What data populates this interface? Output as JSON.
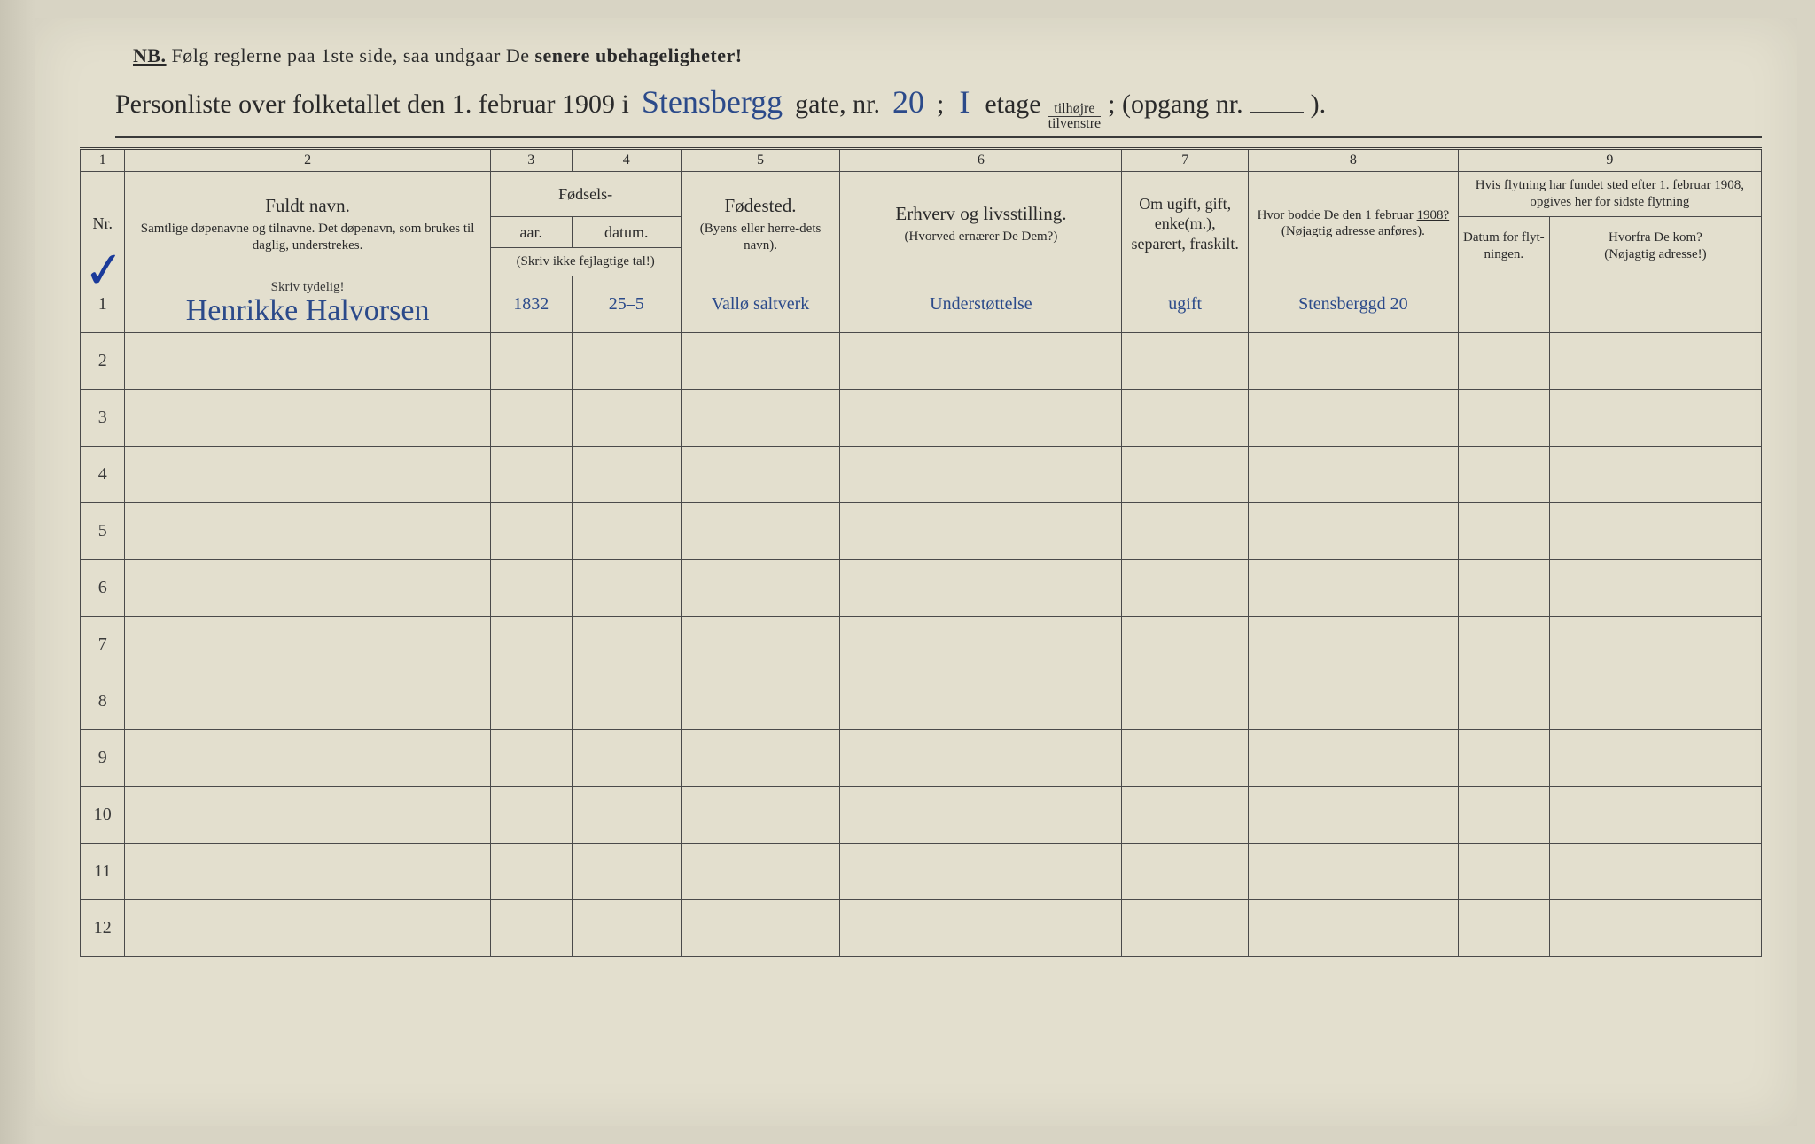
{
  "header": {
    "nb_prefix": "NB.",
    "nb_text_1": "Følg reglerne paa 1ste side, saa undgaar De",
    "nb_text_2": "senere ubehageligheter!",
    "title_1": "Personliste over folketallet den 1. februar 1909 i",
    "street_hand": "Stensbergg",
    "title_2": "gate, nr.",
    "nr_hand": "20",
    "title_3": ";",
    "etage_hand": "I",
    "title_4": "etage",
    "side_top": "tilhøjre",
    "side_bot": "tilvenstre",
    "title_5": "; (opgang nr.",
    "opgang_hand": "",
    "title_6": ")."
  },
  "columns": {
    "nums": [
      "1",
      "2",
      "3",
      "4",
      "5",
      "6",
      "7",
      "8",
      "9"
    ],
    "c1": "Nr.",
    "c2_main": "Fuldt navn.",
    "c2_sub": "Samtlige døpenavne og tilnavne. Det døpenavn, som brukes til daglig, understrekes.",
    "c34_top": "Fødsels-",
    "c3": "aar.",
    "c4": "datum.",
    "c34_sub": "(Skriv ikke fejlagtige tal!)",
    "c5_main": "Fødested.",
    "c5_sub": "(Byens eller herre-dets navn).",
    "c6_main": "Erhverv og livsstilling.",
    "c6_sub": "(Hvorved ernærer De Dem?)",
    "c7": "Om ugift, gift, enke(m.), separert, fraskilt.",
    "c8_main": "Hvor bodde De den 1 februar",
    "c8_year": "1908?",
    "c8_sub": "(Nøjagtig adresse anføres).",
    "c9_top": "Hvis flytning har fundet sted efter 1. februar 1908, opgives her for sidste flytning",
    "c9a": "Datum for flyt-ningen.",
    "c9b_main": "Hvorfra De kom?",
    "c9b_sub": "(Nøjagtig adresse!)",
    "skriv": "Skriv tydelig!"
  },
  "rows": [
    {
      "nr": "1",
      "name": "Henrikke Halvorsen",
      "year": "1832",
      "date": "25–5",
      "place": "Vallø saltverk",
      "occ": "Understøttelse",
      "status": "ugift",
      "addr": "Stensberggd 20",
      "movedate": "",
      "movefrom": ""
    },
    {
      "nr": "2",
      "name": "",
      "year": "",
      "date": "",
      "place": "",
      "occ": "",
      "status": "",
      "addr": "",
      "movedate": "",
      "movefrom": ""
    },
    {
      "nr": "3",
      "name": "",
      "year": "",
      "date": "",
      "place": "",
      "occ": "",
      "status": "",
      "addr": "",
      "movedate": "",
      "movefrom": ""
    },
    {
      "nr": "4",
      "name": "",
      "year": "",
      "date": "",
      "place": "",
      "occ": "",
      "status": "",
      "addr": "",
      "movedate": "",
      "movefrom": ""
    },
    {
      "nr": "5",
      "name": "",
      "year": "",
      "date": "",
      "place": "",
      "occ": "",
      "status": "",
      "addr": "",
      "movedate": "",
      "movefrom": ""
    },
    {
      "nr": "6",
      "name": "",
      "year": "",
      "date": "",
      "place": "",
      "occ": "",
      "status": "",
      "addr": "",
      "movedate": "",
      "movefrom": ""
    },
    {
      "nr": "7",
      "name": "",
      "year": "",
      "date": "",
      "place": "",
      "occ": "",
      "status": "",
      "addr": "",
      "movedate": "",
      "movefrom": ""
    },
    {
      "nr": "8",
      "name": "",
      "year": "",
      "date": "",
      "place": "",
      "occ": "",
      "status": "",
      "addr": "",
      "movedate": "",
      "movefrom": ""
    },
    {
      "nr": "9",
      "name": "",
      "year": "",
      "date": "",
      "place": "",
      "occ": "",
      "status": "",
      "addr": "",
      "movedate": "",
      "movefrom": ""
    },
    {
      "nr": "10",
      "name": "",
      "year": "",
      "date": "",
      "place": "",
      "occ": "",
      "status": "",
      "addr": "",
      "movedate": "",
      "movefrom": ""
    },
    {
      "nr": "11",
      "name": "",
      "year": "",
      "date": "",
      "place": "",
      "occ": "",
      "status": "",
      "addr": "",
      "movedate": "",
      "movefrom": ""
    },
    {
      "nr": "12",
      "name": "",
      "year": "",
      "date": "",
      "place": "",
      "occ": "",
      "status": "",
      "addr": "",
      "movedate": "",
      "movefrom": ""
    }
  ],
  "style": {
    "paper_bg": "#e3dfce",
    "outer_bg": "#d8d4c4",
    "ink": "#2a2a2a",
    "hand_ink": "#2b4a8a",
    "rule": "#4a4a4a"
  }
}
